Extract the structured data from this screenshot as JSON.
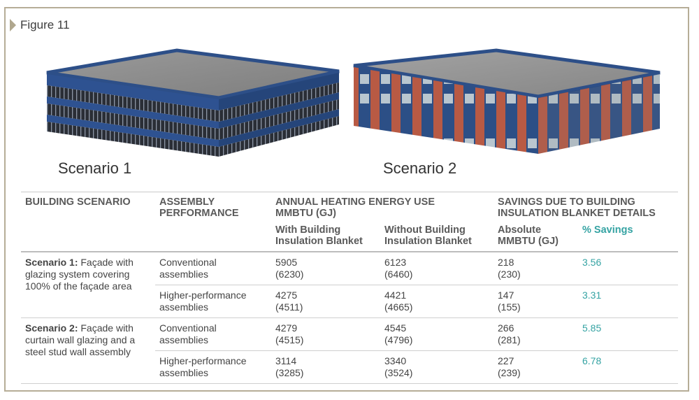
{
  "figure_label": "Figure 11",
  "scenarios": [
    "Scenario 1",
    "Scenario 2"
  ],
  "table": {
    "headers": {
      "building_scenario": "BUILDING SCENARIO",
      "assembly_performance": "ASSEMBLY PERFORMANCE",
      "annual_heating": "ANNUAL HEATING ENERGY USE MMBTU (GJ)",
      "savings": "SAVINGS DUE TO BUILDING INSULATION BLANKET DETAILS",
      "with_blanket": "With Building Insulation Blanket",
      "without_blanket": "Without Building Insulation Blanket",
      "absolute": "Absolute MMBTU (GJ)",
      "pct_savings": "% Savings"
    },
    "groups": [
      {
        "scenario_bold": "Scenario 1:",
        "scenario_text": " Façade with glazing system covering 100% of the façade area",
        "rows": [
          {
            "assembly": "Conventional assemblies",
            "with": "5905",
            "with_gj": "(6230)",
            "without": "6123",
            "without_gj": "(6460)",
            "abs": "218",
            "abs_gj": "(230)",
            "pct": "3.56"
          },
          {
            "assembly": "Higher-performance assemblies",
            "with": "4275",
            "with_gj": "(4511)",
            "without": "4421",
            "without_gj": "(4665)",
            "abs": "147",
            "abs_gj": "(155)",
            "pct": "3.31"
          }
        ]
      },
      {
        "scenario_bold": "Scenario 2:",
        "scenario_text": " Façade with curtain wall glazing and a steel stud wall assembly",
        "rows": [
          {
            "assembly": "Conventional assemblies",
            "with": "4279",
            "with_gj": "(4515)",
            "without": "4545",
            "without_gj": "(4796)",
            "abs": "266",
            "abs_gj": "(281)",
            "pct": "5.85"
          },
          {
            "assembly": "Higher-performance assemblies",
            "with": "3114",
            "with_gj": "(3285)",
            "without": "3340",
            "without_gj": "(3524)",
            "abs": "227",
            "abs_gj": "(239)",
            "pct": "6.78"
          }
        ]
      }
    ]
  },
  "colors": {
    "frame": "#b6ad97",
    "teal": "#35a3a3",
    "glass_blue": "#2c4f86",
    "brick": "#b55a45",
    "roof": "#8a8a8a"
  }
}
